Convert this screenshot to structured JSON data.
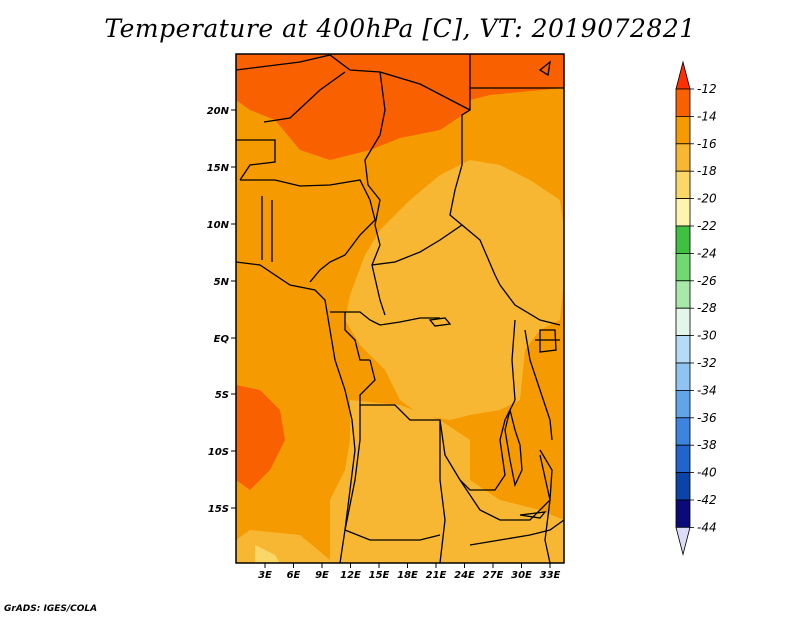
{
  "title": "Temperature at 400hPa [C], VT: 2019072821",
  "credit": "GrADS: IGES/COLA",
  "lat_labels": [
    "20N",
    "15N",
    "10N",
    "5N",
    "EQ",
    "5S",
    "10S",
    "15S"
  ],
  "lon_labels": [
    "3E",
    "6E",
    "9E",
    "12E",
    "15E",
    "18E",
    "21E",
    "24E",
    "27E",
    "30E",
    "33E"
  ],
  "colorbar": {
    "levels": [
      "-12",
      "-14",
      "-16",
      "-18",
      "-20",
      "-22",
      "-24",
      "-26",
      "-28",
      "-30",
      "-32",
      "-34",
      "-36",
      "-38",
      "-40",
      "-42",
      "-44"
    ],
    "colors": [
      "#ff3000",
      "#f86000",
      "#f59a00",
      "#f7b733",
      "#fbd767",
      "#fff3b0",
      "#40c040",
      "#70da70",
      "#a8e8a8",
      "#e2f6ea",
      "#b4dcf8",
      "#90c4f0",
      "#62a4e8",
      "#3c84e0",
      "#2064cc",
      "#0a44a8",
      "#0a0a78",
      "#dcdcf8"
    ]
  },
  "map_field_colors": {
    "le_-16": "#f59a00",
    "le_-14": "#f86000",
    "le_-18": "#f7b733",
    "le_-20": "#fbd767"
  }
}
